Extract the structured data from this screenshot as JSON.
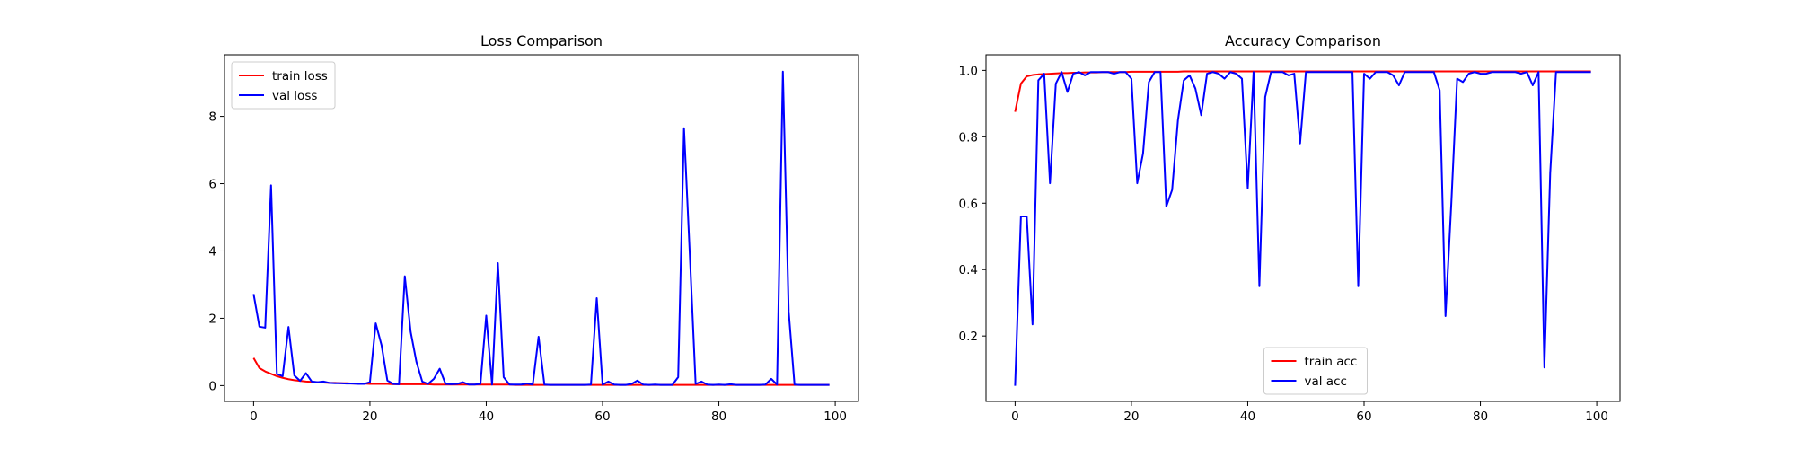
{
  "chart_data": [
    {
      "type": "line",
      "title": "Loss Comparison",
      "xlabel": "",
      "ylabel": "",
      "xlim": [
        -5,
        104
      ],
      "ylim": [
        -0.47,
        9.83
      ],
      "xticks": [
        0,
        20,
        40,
        60,
        80,
        100
      ],
      "yticks": [
        0,
        2,
        4,
        6,
        8
      ],
      "ytick_format": "int",
      "legend_position": "top-left",
      "grid": false,
      "series": [
        {
          "name": "train loss",
          "color": "#ff0000",
          "x": [
            0,
            1,
            2,
            3,
            4,
            5,
            6,
            7,
            8,
            9,
            10,
            11,
            12,
            13,
            14,
            15,
            16,
            17,
            18,
            19,
            20,
            21,
            22,
            23,
            24,
            25,
            26,
            27,
            28,
            29,
            30,
            31,
            32,
            33,
            34,
            35,
            36,
            37,
            38,
            39,
            40,
            41,
            42,
            43,
            44,
            45,
            46,
            47,
            48,
            49,
            50,
            51,
            52,
            53,
            54,
            55,
            56,
            57,
            58,
            59,
            60,
            61,
            62,
            63,
            64,
            65,
            66,
            67,
            68,
            69,
            70,
            71,
            72,
            73,
            74,
            75,
            76,
            77,
            78,
            79,
            80,
            81,
            82,
            83,
            84,
            85,
            86,
            87,
            88,
            89,
            90,
            91,
            92,
            93,
            94,
            95,
            96,
            97,
            98,
            99
          ],
          "values": [
            0.82,
            0.52,
            0.42,
            0.35,
            0.28,
            0.23,
            0.19,
            0.16,
            0.14,
            0.12,
            0.11,
            0.1,
            0.09,
            0.08,
            0.08,
            0.07,
            0.07,
            0.06,
            0.06,
            0.06,
            0.05,
            0.05,
            0.05,
            0.05,
            0.04,
            0.04,
            0.04,
            0.04,
            0.04,
            0.04,
            0.04,
            0.03,
            0.03,
            0.03,
            0.03,
            0.03,
            0.03,
            0.03,
            0.03,
            0.03,
            0.03,
            0.03,
            0.03,
            0.03,
            0.03,
            0.02,
            0.02,
            0.02,
            0.02,
            0.02,
            0.02,
            0.02,
            0.02,
            0.02,
            0.02,
            0.02,
            0.02,
            0.02,
            0.02,
            0.02,
            0.02,
            0.02,
            0.02,
            0.02,
            0.02,
            0.02,
            0.02,
            0.02,
            0.02,
            0.02,
            0.02,
            0.02,
            0.02,
            0.02,
            0.02,
            0.02,
            0.02,
            0.02,
            0.02,
            0.02,
            0.02,
            0.02,
            0.02,
            0.02,
            0.02,
            0.02,
            0.02,
            0.02,
            0.02,
            0.02,
            0.02,
            0.02,
            0.02,
            0.02,
            0.02,
            0.02,
            0.02,
            0.02,
            0.02,
            0.02
          ]
        },
        {
          "name": "val loss",
          "color": "#0000ff",
          "x": [
            0,
            1,
            2,
            3,
            4,
            5,
            6,
            7,
            8,
            9,
            10,
            11,
            12,
            13,
            14,
            15,
            16,
            17,
            18,
            19,
            20,
            21,
            22,
            23,
            24,
            25,
            26,
            27,
            28,
            29,
            30,
            31,
            32,
            33,
            34,
            35,
            36,
            37,
            38,
            39,
            40,
            41,
            42,
            43,
            44,
            45,
            46,
            47,
            48,
            49,
            50,
            51,
            52,
            53,
            54,
            55,
            56,
            57,
            58,
            59,
            60,
            61,
            62,
            63,
            64,
            65,
            66,
            67,
            68,
            69,
            70,
            71,
            72,
            73,
            74,
            75,
            76,
            77,
            78,
            79,
            80,
            81,
            82,
            83,
            84,
            85,
            86,
            87,
            88,
            89,
            90,
            91,
            92,
            93,
            94,
            95,
            96,
            97,
            98,
            99
          ],
          "values": [
            2.72,
            1.75,
            1.72,
            5.95,
            0.35,
            0.28,
            1.74,
            0.3,
            0.14,
            0.37,
            0.12,
            0.1,
            0.12,
            0.08,
            0.07,
            0.07,
            0.06,
            0.06,
            0.05,
            0.05,
            0.1,
            1.85,
            1.2,
            0.15,
            0.05,
            0.04,
            3.25,
            1.6,
            0.7,
            0.12,
            0.05,
            0.2,
            0.5,
            0.05,
            0.04,
            0.05,
            0.1,
            0.03,
            0.03,
            0.05,
            2.08,
            0.03,
            3.64,
            0.25,
            0.03,
            0.03,
            0.03,
            0.06,
            0.03,
            1.45,
            0.03,
            0.02,
            0.02,
            0.02,
            0.02,
            0.02,
            0.02,
            0.02,
            0.03,
            2.6,
            0.03,
            0.12,
            0.03,
            0.02,
            0.02,
            0.05,
            0.15,
            0.03,
            0.02,
            0.03,
            0.02,
            0.02,
            0.02,
            0.25,
            7.65,
            3.9,
            0.05,
            0.12,
            0.03,
            0.02,
            0.03,
            0.02,
            0.04,
            0.02,
            0.02,
            0.02,
            0.02,
            0.02,
            0.03,
            0.2,
            0.03,
            9.33,
            2.2,
            0.03,
            0.02,
            0.02,
            0.02,
            0.02,
            0.02,
            0.02
          ]
        }
      ]
    },
    {
      "type": "line",
      "title": "Accuracy Comparison",
      "xlabel": "",
      "ylabel": "",
      "xlim": [
        -5,
        104
      ],
      "ylim": [
        0.003,
        1.047
      ],
      "xticks": [
        0,
        20,
        40,
        60,
        80,
        100
      ],
      "yticks": [
        0.2,
        0.4,
        0.6,
        0.8,
        1.0
      ],
      "ytick_format": "one_decimal",
      "legend_position": "lower-center",
      "grid": false,
      "series": [
        {
          "name": "train acc",
          "color": "#ff0000",
          "x": [
            0,
            1,
            2,
            3,
            4,
            5,
            6,
            7,
            8,
            9,
            10,
            11,
            12,
            13,
            14,
            15,
            16,
            17,
            18,
            19,
            20,
            21,
            22,
            23,
            24,
            25,
            26,
            27,
            28,
            29,
            30,
            31,
            32,
            33,
            34,
            35,
            36,
            37,
            38,
            39,
            40,
            41,
            42,
            43,
            44,
            45,
            46,
            47,
            48,
            49,
            50,
            51,
            52,
            53,
            54,
            55,
            56,
            57,
            58,
            59,
            60,
            61,
            62,
            63,
            64,
            65,
            66,
            67,
            68,
            69,
            70,
            71,
            72,
            73,
            74,
            75,
            76,
            77,
            78,
            79,
            80,
            81,
            82,
            83,
            84,
            85,
            86,
            87,
            88,
            89,
            90,
            91,
            92,
            93,
            94,
            95,
            96,
            97,
            98,
            99
          ],
          "values": [
            0.875,
            0.96,
            0.982,
            0.986,
            0.988,
            0.989,
            0.99,
            0.991,
            0.992,
            0.992,
            0.993,
            0.993,
            0.994,
            0.994,
            0.994,
            0.995,
            0.995,
            0.995,
            0.995,
            0.995,
            0.996,
            0.996,
            0.996,
            0.996,
            0.996,
            0.996,
            0.996,
            0.996,
            0.996,
            0.997,
            0.997,
            0.997,
            0.997,
            0.997,
            0.997,
            0.997,
            0.997,
            0.997,
            0.997,
            0.997,
            0.997,
            0.997,
            0.997,
            0.997,
            0.997,
            0.997,
            0.997,
            0.997,
            0.997,
            0.997,
            0.997,
            0.997,
            0.997,
            0.997,
            0.997,
            0.997,
            0.997,
            0.997,
            0.997,
            0.997,
            0.997,
            0.997,
            0.997,
            0.997,
            0.997,
            0.997,
            0.997,
            0.997,
            0.997,
            0.997,
            0.997,
            0.997,
            0.997,
            0.997,
            0.997,
            0.997,
            0.997,
            0.997,
            0.997,
            0.997,
            0.997,
            0.997,
            0.997,
            0.997,
            0.997,
            0.997,
            0.997,
            0.997,
            0.997,
            0.997,
            0.997,
            0.997,
            0.997,
            0.997,
            0.997,
            0.997,
            0.997,
            0.997,
            0.997,
            0.997
          ]
        },
        {
          "name": "val acc",
          "color": "#0000ff",
          "x": [
            0,
            1,
            2,
            3,
            4,
            5,
            6,
            7,
            8,
            9,
            10,
            11,
            12,
            13,
            14,
            15,
            16,
            17,
            18,
            19,
            20,
            21,
            22,
            23,
            24,
            25,
            26,
            27,
            28,
            29,
            30,
            31,
            32,
            33,
            34,
            35,
            36,
            37,
            38,
            39,
            40,
            41,
            42,
            43,
            44,
            45,
            46,
            47,
            48,
            49,
            50,
            51,
            52,
            53,
            54,
            55,
            56,
            57,
            58,
            59,
            60,
            61,
            62,
            63,
            64,
            65,
            66,
            67,
            68,
            69,
            70,
            71,
            72,
            73,
            74,
            75,
            76,
            77,
            78,
            79,
            80,
            81,
            82,
            83,
            84,
            85,
            86,
            87,
            88,
            89,
            90,
            91,
            92,
            93,
            94,
            95,
            96,
            97,
            98,
            99
          ],
          "values": [
            0.05,
            0.56,
            0.56,
            0.235,
            0.97,
            0.99,
            0.66,
            0.96,
            0.995,
            0.935,
            0.99,
            0.995,
            0.985,
            0.995,
            0.995,
            0.995,
            0.995,
            0.99,
            0.995,
            0.995,
            0.975,
            0.66,
            0.75,
            0.965,
            0.995,
            0.995,
            0.59,
            0.64,
            0.85,
            0.97,
            0.985,
            0.945,
            0.865,
            0.99,
            0.995,
            0.99,
            0.975,
            0.995,
            0.99,
            0.975,
            0.645,
            0.995,
            0.35,
            0.92,
            0.995,
            0.995,
            0.995,
            0.985,
            0.99,
            0.78,
            0.995,
            0.995,
            0.995,
            0.995,
            0.995,
            0.995,
            0.995,
            0.995,
            0.995,
            0.35,
            0.99,
            0.975,
            0.995,
            0.995,
            0.995,
            0.985,
            0.955,
            0.995,
            0.995,
            0.995,
            0.995,
            0.995,
            0.995,
            0.94,
            0.26,
            0.6,
            0.975,
            0.965,
            0.99,
            0.995,
            0.99,
            0.99,
            0.995,
            0.995,
            0.995,
            0.995,
            0.995,
            0.99,
            0.995,
            0.955,
            0.995,
            0.105,
            0.69,
            0.995,
            0.995,
            0.995,
            0.995,
            0.995,
            0.995,
            0.995
          ]
        }
      ]
    }
  ]
}
